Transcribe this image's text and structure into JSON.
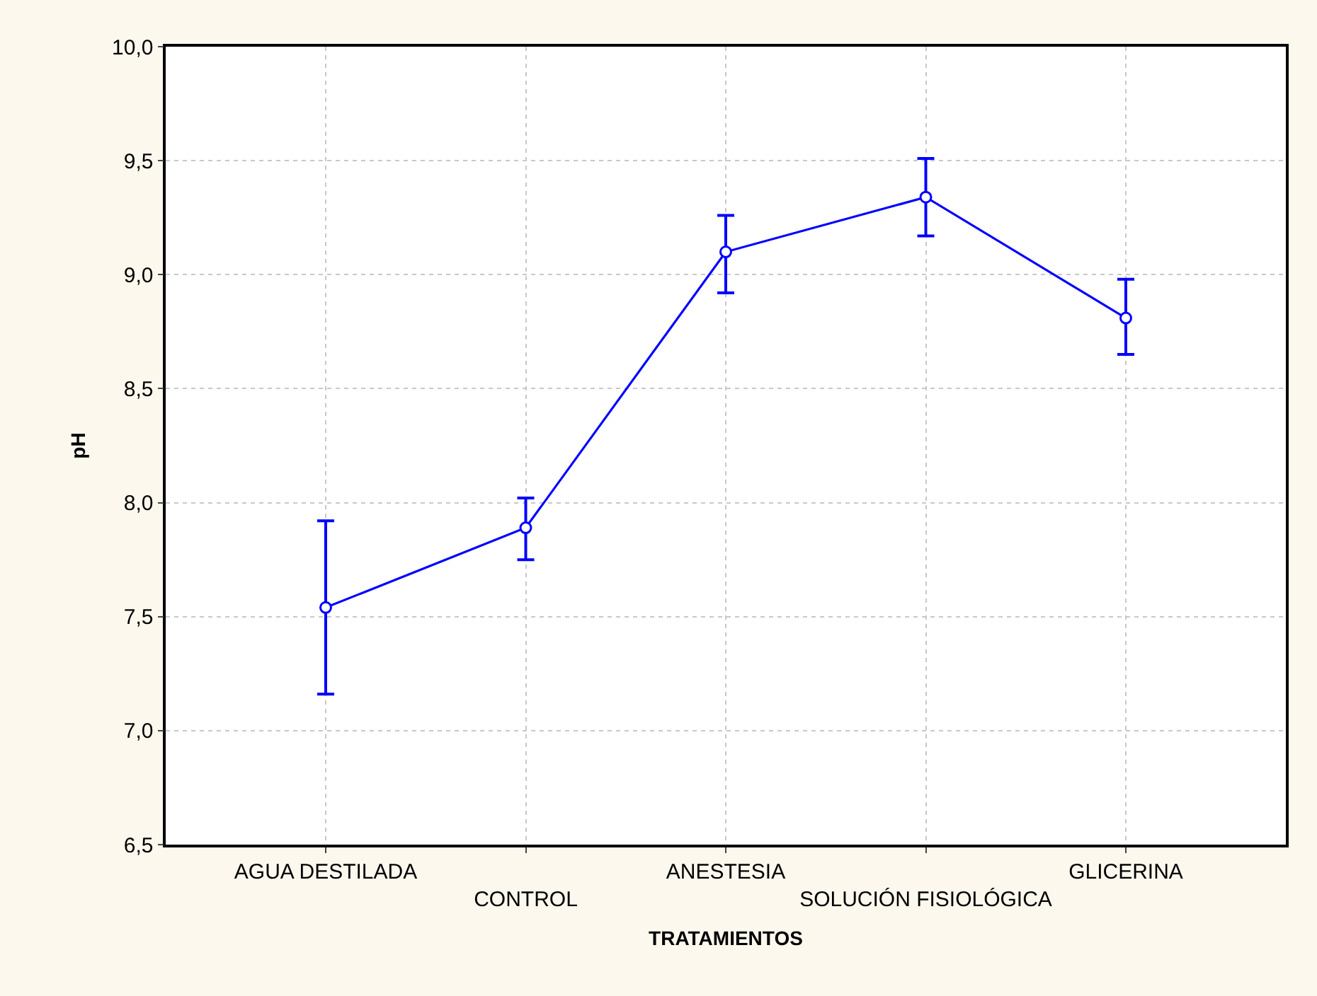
{
  "chart_data": {
    "type": "line",
    "xlabel": "TRATAMIENTOS",
    "ylabel": "pH",
    "categories": [
      "AGUA DESTILADA",
      "CONTROL",
      "ANESTESIA",
      "SOLUCIÓN FISIOLÓGICA",
      "GLICERINA"
    ],
    "series": [
      {
        "color": "#0000ff",
        "values": [
          7.54,
          7.89,
          9.1,
          9.34,
          8.81
        ],
        "errors": [
          [
            7.16,
            7.92
          ],
          [
            7.75,
            8.02
          ],
          [
            8.92,
            9.26
          ],
          [
            9.17,
            9.51
          ],
          [
            8.65,
            8.98
          ]
        ]
      }
    ],
    "ylim": [
      6.5,
      10.0
    ],
    "yticks": [
      {
        "value": 6.5,
        "label": "6,5"
      },
      {
        "value": 7.0,
        "label": "7,0"
      },
      {
        "value": 7.5,
        "label": "7,5"
      },
      {
        "value": 8.0,
        "label": "8,0"
      },
      {
        "value": 8.5,
        "label": "8,5"
      },
      {
        "value": 9.0,
        "label": "9,0"
      },
      {
        "value": 9.5,
        "label": "9,5"
      },
      {
        "value": 10.0,
        "label": "10,0"
      }
    ],
    "grid": true,
    "marker": "circle",
    "line_style": "solid",
    "legend": false
  }
}
